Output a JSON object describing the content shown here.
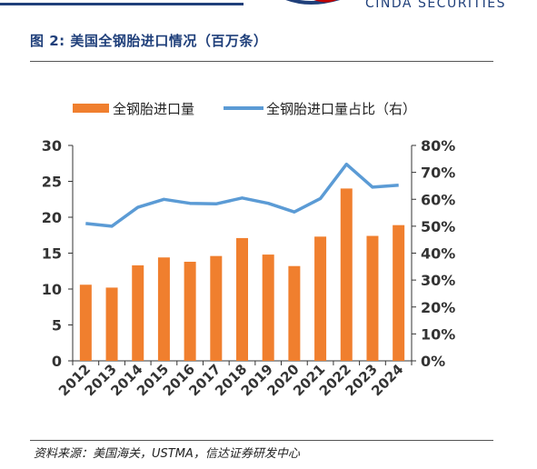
{
  "header": {
    "brand_text": "CINDA SECURITIES"
  },
  "figure": {
    "title": "图 2:  美国全钢胎进口情况（百万条）",
    "source": "资料来源：美国海关，USTMA，信达证券研发中心"
  },
  "chart_data": {
    "type": "bar",
    "categories": [
      "2012",
      "2013",
      "2014",
      "2015",
      "2016",
      "2017",
      "2018",
      "2019",
      "2020",
      "2021",
      "2022",
      "2023",
      "2024"
    ],
    "series": [
      {
        "name": "全钢胎进口量",
        "type": "bar",
        "axis": "left",
        "color": "#f07f2e",
        "values": [
          10.6,
          10.2,
          13.3,
          14.4,
          13.8,
          14.6,
          17.1,
          14.8,
          13.2,
          17.3,
          24.0,
          17.4,
          18.9
        ]
      },
      {
        "name": "全钢胎进口量占比（右）",
        "type": "line",
        "axis": "right",
        "color": "#5b9bd5",
        "values": [
          0.51,
          0.5,
          0.57,
          0.6,
          0.585,
          0.583,
          0.605,
          0.585,
          0.553,
          0.603,
          0.73,
          0.645,
          0.652
        ]
      }
    ],
    "ylim": [
      0,
      30
    ],
    "yticks": [
      "0",
      "5",
      "10",
      "15",
      "20",
      "25",
      "30"
    ],
    "y2lim": [
      0,
      0.8
    ],
    "y2ticks": [
      "0%",
      "10%",
      "20%",
      "30%",
      "40%",
      "50%",
      "60%",
      "70%",
      "80%"
    ],
    "legend_position": "top",
    "grid": false
  }
}
